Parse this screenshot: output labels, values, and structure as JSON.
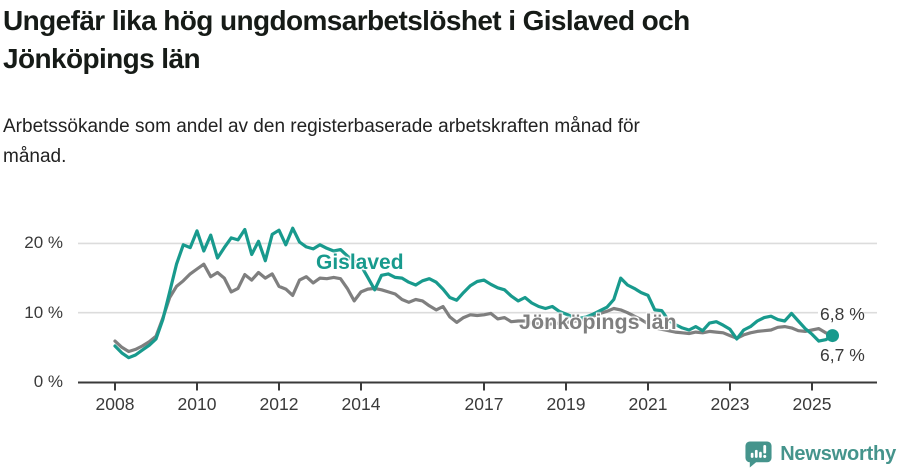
{
  "header": {
    "title": "Ungefär lika hög ungdomsarbetslöshet i Gislaved och Jönköpings län",
    "subtitle": "Arbetssökande som andel av den registerbaserade arbetskraften månad för månad."
  },
  "chart_data": {
    "type": "line",
    "x_start_year": 2008,
    "x_step_months": 2,
    "x_end": "2025 (mid-year)",
    "ylim": [
      0,
      22.5
    ],
    "grid": "horizontal",
    "y_axis": {
      "ticks": [
        {
          "value": 20,
          "label": "20 %"
        },
        {
          "value": 10,
          "label": "10 %"
        },
        {
          "value": 0,
          "label": "0 %"
        }
      ]
    },
    "x_axis": {
      "ticks": [
        {
          "value": 2008,
          "label": "2008"
        },
        {
          "value": 2010,
          "label": "2010"
        },
        {
          "value": 2012,
          "label": "2012"
        },
        {
          "value": 2014,
          "label": "2014"
        },
        {
          "value": 2017,
          "label": "2017"
        },
        {
          "value": 2019,
          "label": "2019"
        },
        {
          "value": 2021,
          "label": "2021"
        },
        {
          "value": 2023,
          "label": "2023"
        },
        {
          "value": 2025,
          "label": "2025"
        }
      ]
    },
    "series": [
      {
        "name": "Gislaved",
        "color": "#189a8d",
        "end_label": "6,7 %",
        "end_dot": true,
        "values": [
          5.2,
          4.2,
          3.5,
          3.9,
          4.6,
          5.3,
          6.2,
          9.0,
          13.0,
          17.0,
          19.8,
          19.4,
          21.8,
          18.9,
          21.2,
          17.9,
          19.4,
          20.8,
          20.5,
          22.0,
          18.4,
          20.3,
          17.5,
          21.3,
          21.9,
          19.8,
          22.2,
          20.2,
          19.5,
          19.2,
          19.8,
          19.3,
          18.9,
          19.1,
          18.2,
          17.4,
          16.8,
          15.1,
          13.3,
          15.4,
          15.6,
          15.1,
          15.0,
          14.4,
          14.0,
          14.6,
          14.9,
          14.4,
          13.4,
          12.2,
          11.8,
          12.9,
          13.9,
          14.5,
          14.7,
          14.1,
          13.6,
          13.3,
          12.4,
          11.7,
          12.2,
          11.4,
          10.9,
          10.6,
          10.9,
          10.2,
          9.8,
          9.4,
          9.2,
          9.4,
          9.8,
          10.3,
          10.8,
          11.9,
          15.0,
          14.0,
          13.5,
          12.9,
          12.5,
          10.4,
          10.3,
          8.9,
          8.3,
          7.8,
          7.5,
          8.0,
          7.4,
          8.5,
          8.7,
          8.2,
          7.6,
          6.2,
          7.5,
          8.0,
          8.8,
          9.3,
          9.5,
          9.0,
          8.8,
          9.9,
          8.8,
          7.7,
          6.9,
          5.9,
          6.1,
          6.7
        ]
      },
      {
        "name": "Jönköpings län",
        "color": "#7f7f7f",
        "end_label": "6,8 %",
        "end_dot": false,
        "values": [
          5.9,
          5.0,
          4.4,
          4.7,
          5.2,
          5.8,
          6.6,
          9.2,
          12.2,
          13.8,
          14.6,
          15.6,
          16.3,
          17.0,
          15.2,
          15.8,
          15.0,
          13.0,
          13.5,
          15.5,
          14.7,
          15.8,
          15.0,
          15.6,
          13.8,
          13.4,
          12.5,
          14.7,
          15.2,
          14.3,
          15.0,
          14.9,
          15.1,
          14.9,
          13.5,
          11.7,
          13.0,
          13.4,
          13.5,
          13.3,
          13.0,
          12.7,
          11.9,
          11.5,
          11.9,
          11.7,
          11.0,
          10.4,
          10.9,
          9.4,
          8.6,
          9.3,
          9.7,
          9.6,
          9.7,
          9.9,
          9.1,
          9.3,
          8.7,
          8.8,
          8.8,
          8.5,
          8.4,
          8.3,
          8.4,
          8.5,
          8.6,
          8.7,
          8.9,
          9.1,
          9.5,
          9.9,
          10.2,
          10.6,
          10.4,
          10.0,
          9.5,
          9.0,
          8.4,
          7.8,
          7.6,
          7.4,
          7.2,
          7.1,
          7.0,
          7.2,
          7.1,
          7.3,
          7.2,
          7.1,
          6.7,
          6.3,
          6.8,
          7.1,
          7.3,
          7.4,
          7.5,
          7.9,
          8.0,
          7.8,
          7.4,
          7.3,
          7.5,
          7.7,
          7.1,
          6.8
        ]
      }
    ],
    "colors": {
      "grid": "#dcdcdc",
      "axis": "#3a3a3a",
      "axis_text": "#3a3a3a",
      "title_text": "#161b17",
      "logo_teal": "#45948c"
    }
  },
  "logo": {
    "text": "Newsworthy"
  }
}
